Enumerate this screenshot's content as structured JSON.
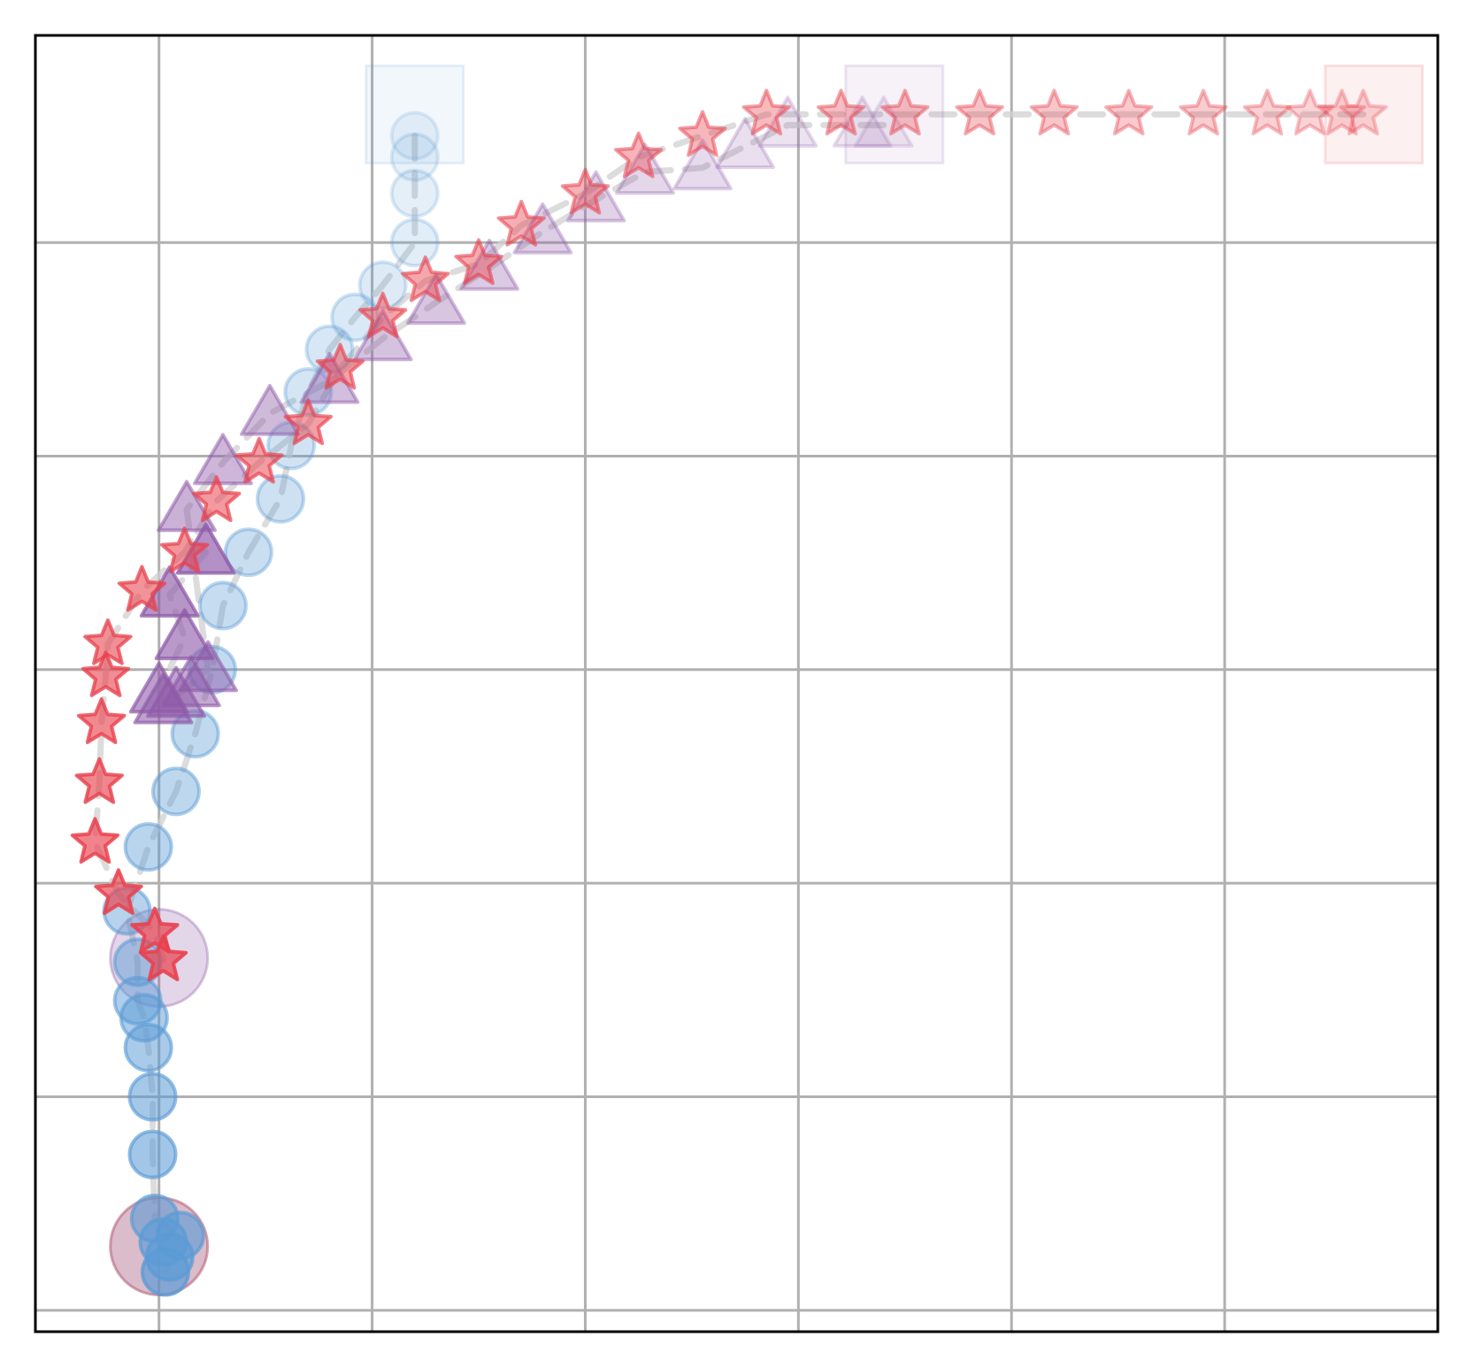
{
  "chart_data": {
    "type": "scatter",
    "title": "",
    "xlabel": "",
    "ylabel": "",
    "xlim": [
      -0.58,
      6.0
    ],
    "ylim": [
      -0.1,
      5.97
    ],
    "grid": true,
    "x_gridlines": [
      0,
      1,
      2,
      3,
      4,
      5
    ],
    "y_gridlines": [
      0,
      1,
      2,
      3,
      4,
      5
    ],
    "series": [
      {
        "marker": "circle",
        "color": "#5b9bd5",
        "line_color": "#d0d0d0",
        "start_marker": {
          "shape": "square",
          "x": 1.2,
          "y": 5.6
        },
        "end_marker": {
          "shape": "big-circle",
          "x": 0.0,
          "y": 0.3
        },
        "points": [
          [
            1.2,
            5.5
          ],
          [
            1.2,
            5.4
          ],
          [
            1.2,
            5.23
          ],
          [
            1.2,
            5.0
          ],
          [
            1.05,
            4.8
          ],
          [
            0.92,
            4.65
          ],
          [
            0.8,
            4.5
          ],
          [
            0.7,
            4.3
          ],
          [
            0.62,
            4.05
          ],
          [
            0.57,
            3.8
          ],
          [
            0.42,
            3.55
          ],
          [
            0.3,
            3.3
          ],
          [
            0.25,
            3.0
          ],
          [
            0.17,
            2.7
          ],
          [
            0.08,
            2.43
          ],
          [
            -0.05,
            2.17
          ],
          [
            -0.15,
            1.87
          ],
          [
            -0.1,
            1.63
          ],
          [
            -0.1,
            1.45
          ],
          [
            -0.07,
            1.37
          ],
          [
            -0.05,
            1.23
          ],
          [
            -0.03,
            1.0
          ],
          [
            -0.03,
            0.73
          ],
          [
            -0.02,
            0.43
          ],
          [
            0.1,
            0.35
          ],
          [
            0.02,
            0.32
          ],
          [
            0.05,
            0.25
          ],
          [
            0.03,
            0.18
          ]
        ]
      },
      {
        "marker": "triangle",
        "color": "#8e5aa8",
        "line_color": "#d0d0d0",
        "start_marker": {
          "shape": "square",
          "x": 3.45,
          "y": 5.6
        },
        "end_marker": {
          "shape": "big-circle",
          "x": 0.0,
          "y": 1.65
        },
        "points": [
          [
            3.4,
            5.55
          ],
          [
            3.3,
            5.55
          ],
          [
            2.95,
            5.55
          ],
          [
            2.75,
            5.45
          ],
          [
            2.55,
            5.35
          ],
          [
            2.28,
            5.33
          ],
          [
            2.05,
            5.2
          ],
          [
            1.8,
            5.05
          ],
          [
            1.55,
            4.88
          ],
          [
            1.3,
            4.72
          ],
          [
            1.05,
            4.55
          ],
          [
            0.8,
            4.35
          ],
          [
            0.52,
            4.2
          ],
          [
            0.3,
            3.97
          ],
          [
            0.13,
            3.75
          ],
          [
            0.23,
            3.0
          ],
          [
            0.15,
            2.93
          ],
          [
            0.08,
            2.88
          ],
          [
            0.02,
            2.85
          ],
          [
            0.0,
            2.9
          ],
          [
            0.12,
            3.15
          ],
          [
            0.05,
            3.35
          ],
          [
            0.22,
            3.55
          ]
        ]
      },
      {
        "marker": "star",
        "color": "#e8414d",
        "line_color": "#d0d0d0",
        "start_marker": {
          "shape": "square",
          "x": 5.7,
          "y": 5.6
        },
        "end_marker": {
          "shape": "big-circle",
          "x": 0.0,
          "y": 0.3
        },
        "points": [
          [
            5.65,
            5.6
          ],
          [
            5.55,
            5.6
          ],
          [
            5.4,
            5.6
          ],
          [
            5.2,
            5.6
          ],
          [
            4.9,
            5.6
          ],
          [
            4.55,
            5.6
          ],
          [
            4.2,
            5.6
          ],
          [
            3.85,
            5.6
          ],
          [
            3.5,
            5.6
          ],
          [
            3.2,
            5.6
          ],
          [
            2.85,
            5.6
          ],
          [
            2.55,
            5.5
          ],
          [
            2.25,
            5.4
          ],
          [
            2.0,
            5.23
          ],
          [
            1.7,
            5.08
          ],
          [
            1.5,
            4.9
          ],
          [
            1.25,
            4.82
          ],
          [
            1.05,
            4.65
          ],
          [
            0.85,
            4.41
          ],
          [
            0.7,
            4.15
          ],
          [
            0.47,
            3.97
          ],
          [
            0.27,
            3.79
          ],
          [
            0.12,
            3.55
          ],
          [
            -0.08,
            3.37
          ],
          [
            -0.24,
            3.12
          ],
          [
            -0.25,
            2.97
          ],
          [
            -0.27,
            2.75
          ],
          [
            -0.28,
            2.47
          ],
          [
            -0.3,
            2.19
          ],
          [
            -0.19,
            1.95
          ],
          [
            -0.02,
            1.77
          ],
          [
            0.02,
            1.64
          ]
        ]
      }
    ]
  }
}
